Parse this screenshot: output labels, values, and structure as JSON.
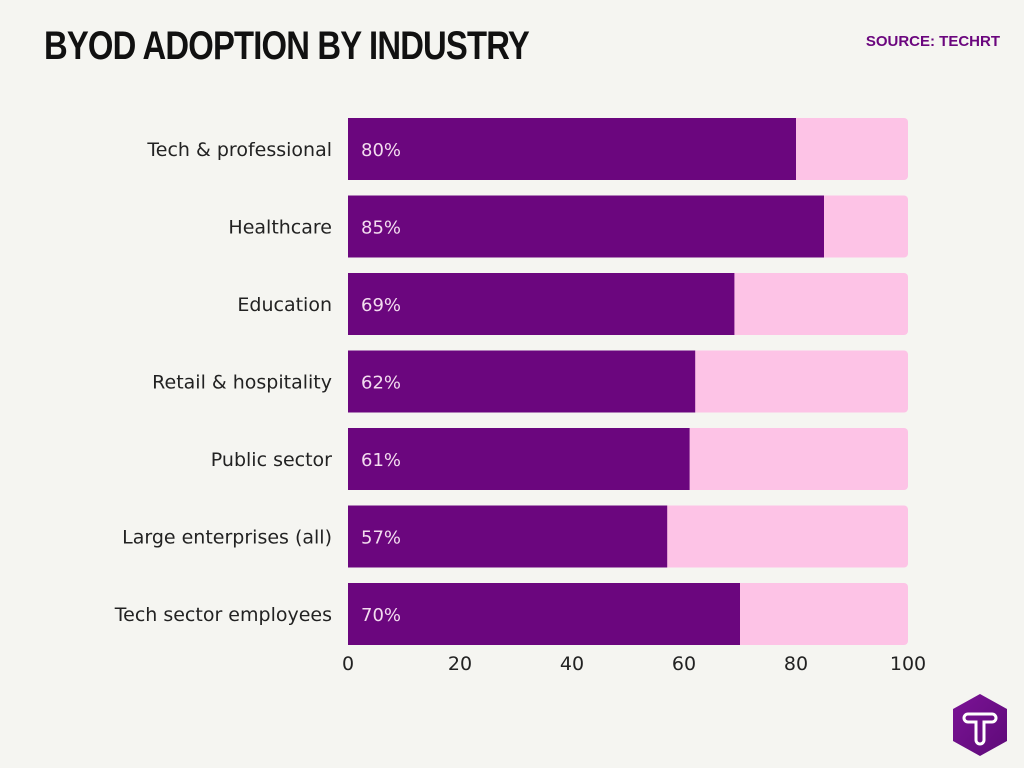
{
  "header": {
    "title": "BYOD ADOPTION BY INDUSTRY",
    "source": "SOURCE: TECHRT"
  },
  "logo": {
    "text": "T",
    "icon": "techrt-hexagon-logo"
  },
  "colors": {
    "bar": "#6b067e",
    "track": "#fdc3e6",
    "background": "#f5f5f1"
  },
  "chart_data": {
    "type": "bar",
    "orientation": "horizontal",
    "stacked_with_remainder_to": 100,
    "categories": [
      "Tech & professional",
      "Healthcare",
      "Education",
      "Retail & hospitality",
      "Public sector",
      "Large enterprises (all)",
      "Tech sector employees"
    ],
    "values": [
      80,
      85,
      69,
      62,
      61,
      57,
      70
    ],
    "data_labels": [
      "80%",
      "85%",
      "69%",
      "62%",
      "61%",
      "57%",
      "70%"
    ],
    "xlim": [
      0,
      100
    ],
    "xticks": [
      "0",
      "20",
      "40",
      "60",
      "80",
      "100"
    ],
    "grid": false,
    "legend": "none"
  }
}
